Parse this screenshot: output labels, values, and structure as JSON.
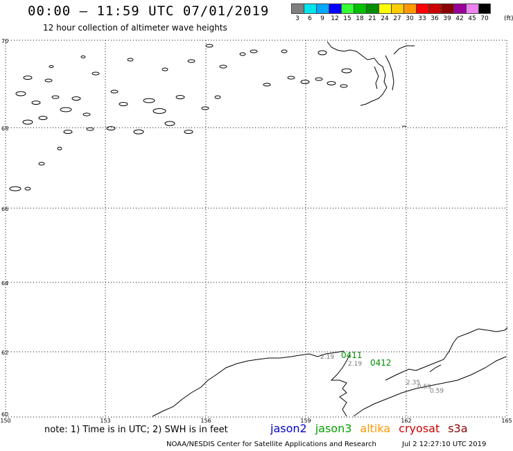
{
  "header": {
    "title": "00:00 – 11:59 UTC 07/01/2019",
    "subtitle": "12 hour collection of altimeter wave heights"
  },
  "legend": {
    "units": "(ft)",
    "bins": [
      {
        "label": "3",
        "color": "#808080"
      },
      {
        "label": "6",
        "color": "#00e5ee"
      },
      {
        "label": "9",
        "color": "#00a8ff"
      },
      {
        "label": "12",
        "color": "#0000ff"
      },
      {
        "label": "15",
        "color": "#33ff33"
      },
      {
        "label": "18",
        "color": "#00c000"
      },
      {
        "label": "21",
        "color": "#008c00"
      },
      {
        "label": "24",
        "color": "#ffff00"
      },
      {
        "label": "27",
        "color": "#ffcc00"
      },
      {
        "label": "30",
        "color": "#ff9900"
      },
      {
        "label": "33",
        "color": "#ff0000"
      },
      {
        "label": "36",
        "color": "#cc0000"
      },
      {
        "label": "39",
        "color": "#8b0000"
      },
      {
        "label": "42",
        "color": "#990099"
      },
      {
        "label": "45",
        "color": "#ee82ee"
      },
      {
        "label": "70",
        "color": "#000000"
      }
    ]
  },
  "map": {
    "lon_labels": [
      "150",
      "153",
      "156",
      "159",
      "162",
      "165"
    ],
    "lat_labels": [
      "70",
      "68",
      "66",
      "64",
      "62",
      "60"
    ],
    "track_labels": [
      {
        "text": "0411",
        "color": "#008c00"
      },
      {
        "text": "0412",
        "color": "#008c00"
      }
    ],
    "wave_values": [
      {
        "text": "2.19",
        "color": "#777777"
      },
      {
        "text": "2.19",
        "color": "#777777"
      },
      {
        "text": "2.35",
        "color": "#777777"
      },
      {
        "text": "0.59",
        "color": "#777777"
      },
      {
        "text": "0.59",
        "color": "#777777"
      }
    ]
  },
  "footer": {
    "note": "note: 1) Time is in UTC; 2) SWH is in feet",
    "satellites": [
      {
        "name": "jason2",
        "color": "#0000cc"
      },
      {
        "name": "jason3",
        "color": "#00a000"
      },
      {
        "name": "altika",
        "color": "#ff9900"
      },
      {
        "name": "cryosat",
        "color": "#cc0000"
      },
      {
        "name": "s3a",
        "color": "#8b0000"
      }
    ],
    "credit": "NOAA/NESDIS Center for Satellite Applications and Research",
    "timestamp": "Jul  2 12:27:10 UTC 2019"
  }
}
